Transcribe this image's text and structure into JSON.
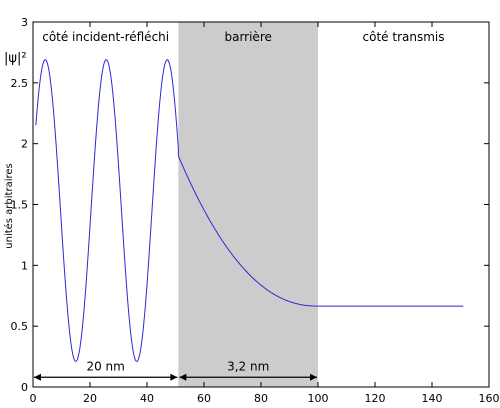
{
  "chart_data": {
    "type": "line",
    "ylabel": "unités arbitraires",
    "y_annotation": "|ψ|²",
    "xlim": [
      0,
      160
    ],
    "ylim": [
      0,
      3
    ],
    "x_ticks": [
      0,
      20,
      40,
      60,
      80,
      100,
      120,
      140,
      160
    ],
    "y_ticks": [
      0,
      0.5,
      1,
      1.5,
      2,
      2.5,
      3
    ],
    "x_tick_labels": [
      "0",
      "20",
      "40",
      "60",
      "80",
      "100",
      "120",
      "140",
      "160"
    ],
    "y_tick_labels": [
      "0",
      "0.5",
      "1",
      "1.5",
      "2",
      "2.5",
      "3"
    ],
    "grid": false,
    "regions": [
      {
        "label": "côté incident-réfléchi",
        "x_range": [
          0,
          51
        ]
      },
      {
        "label": "barrière",
        "x_range": [
          51,
          100
        ],
        "shaded": true,
        "color": "#cccccc"
      },
      {
        "label": "côté transmis",
        "x_range": [
          100,
          160
        ]
      }
    ],
    "dimensions": [
      {
        "label": "20 nm",
        "x_range": [
          0,
          51
        ]
      },
      {
        "label": "3,2 nm",
        "x_range": [
          51,
          100
        ]
      }
    ],
    "series": [
      {
        "color": "#2b2bd6",
        "incident": {
          "x_range": [
            0,
            51
          ],
          "mean": 1.45,
          "amplitude": 1.24,
          "period": 21.4,
          "phase_x": 4.3
        },
        "barrier": {
          "x_range": [
            51,
            100
          ],
          "y_start": 1.9,
          "y_end": 0.665
        },
        "transmitted": {
          "x_range": [
            100,
            151
          ],
          "y": 0.665
        }
      }
    ]
  }
}
